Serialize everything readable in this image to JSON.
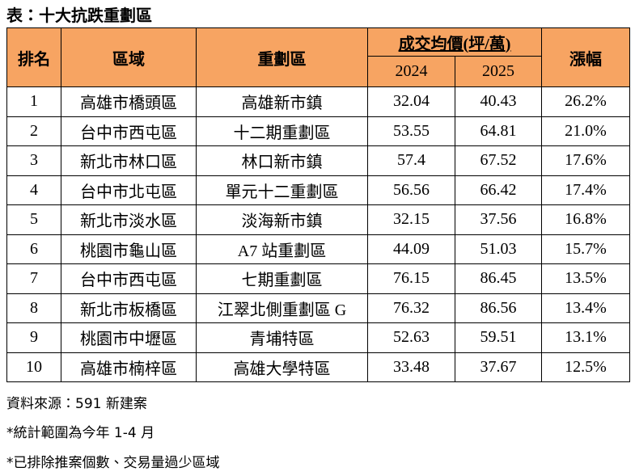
{
  "title": "表：十大抗跌重劃區",
  "table": {
    "headers": {
      "rank": "排名",
      "region": "區域",
      "zone": "重劃區",
      "price": "成交均價(坪/萬)",
      "year1": "2024",
      "year2": "2025",
      "change": "漲幅"
    },
    "rows": [
      [
        1,
        "高雄市橋頭區",
        "高雄新市鎮",
        32.04,
        40.43,
        "26.2%"
      ],
      [
        2,
        "台中市西屯區",
        "十二期重劃區",
        53.55,
        64.81,
        "21.0%"
      ],
      [
        3,
        "新北市林口區",
        "林口新市鎮",
        57.4,
        67.52,
        "17.6%"
      ],
      [
        4,
        "台中市北屯區",
        "單元十二重劃區",
        56.56,
        66.42,
        "17.4%"
      ],
      [
        5,
        "新北市淡水區",
        "淡海新市鎮",
        32.15,
        37.56,
        "16.8%"
      ],
      [
        6,
        "桃園市龜山區",
        "A7 站重劃區",
        44.09,
        51.03,
        "15.7%"
      ],
      [
        7,
        "台中市西屯區",
        "七期重劃區",
        76.15,
        86.45,
        "13.5%"
      ],
      [
        8,
        "新北市板橋區",
        "江翠北側重劃區 G",
        76.32,
        86.56,
        "13.4%"
      ],
      [
        9,
        "桃園市中壢區",
        "青埔特區",
        52.63,
        59.51,
        "13.1%"
      ],
      [
        10,
        "高雄市楠梓區",
        "高雄大學特區",
        33.48,
        37.67,
        "12.5%"
      ]
    ]
  },
  "notes": [
    "資料來源：591 新建案",
    "*統計範圍為今年 1-4 月",
    "*已排除推案個數、交易量過少區域"
  ]
}
